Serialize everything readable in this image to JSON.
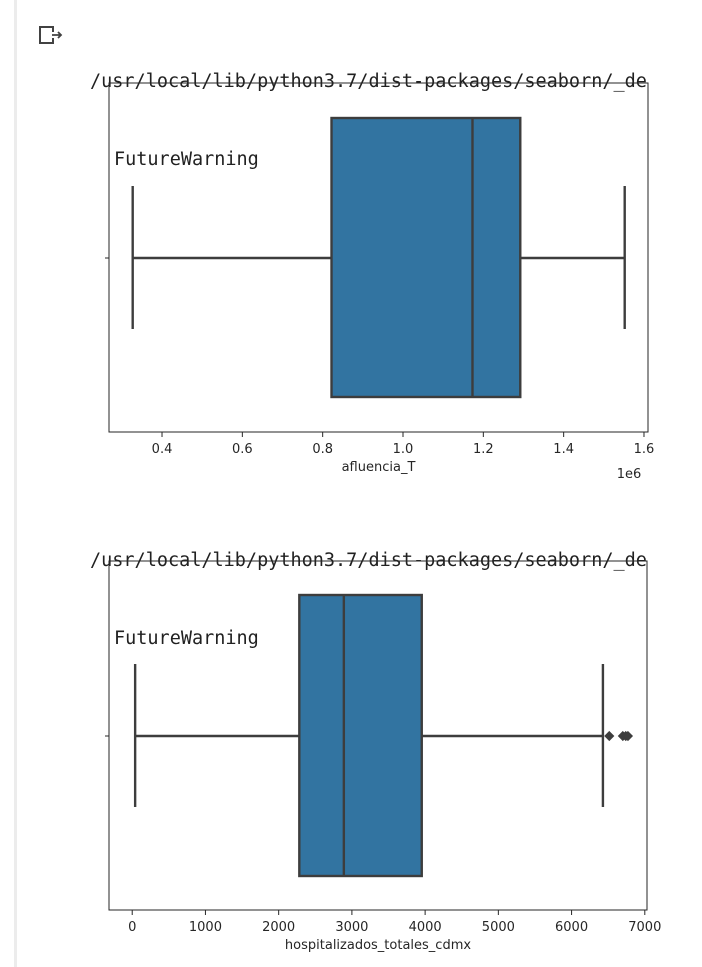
{
  "output": {
    "icon": "output-arrow-icon",
    "warnings": [
      {
        "path": "/usr/local/lib/python3.7/dist-packages/seaborn/_de",
        "message": "FutureWarning"
      },
      {
        "path": "/usr/local/lib/python3.7/dist-packages/seaborn/_de",
        "message": "FutureWarning"
      }
    ]
  },
  "colors": {
    "box_fill": "#3274a1",
    "line": "#3d3d3d",
    "frame": "#262626"
  },
  "chart_data": [
    {
      "type": "boxplot",
      "orientation": "horizontal",
      "xlabel": "afluencia_T",
      "offset_label": "1e6",
      "xlim": [
        268000,
        1610000
      ],
      "ticks": [
        0.4,
        0.6,
        0.8,
        1.0,
        1.2,
        1.4,
        1.6
      ],
      "tick_labels": [
        "0.4",
        "0.6",
        "0.8",
        "1.0",
        "1.2",
        "1.4",
        "1.6"
      ],
      "tick_scale": 1000000,
      "stats": {
        "whisker_low": 327000,
        "q1": 822000,
        "median": 1173000,
        "q3": 1292000,
        "whisker_high": 1552000
      },
      "outliers": []
    },
    {
      "type": "boxplot",
      "orientation": "horizontal",
      "xlabel": "hospitalizados_totales_cdmx",
      "offset_label": "",
      "xlim": [
        -317,
        7030
      ],
      "ticks": [
        0,
        1000,
        2000,
        3000,
        4000,
        5000,
        6000,
        7000
      ],
      "tick_labels": [
        "0",
        "1000",
        "2000",
        "3000",
        "4000",
        "5000",
        "6000",
        "7000"
      ],
      "tick_scale": 1,
      "stats": {
        "whisker_low": 40,
        "q1": 2282,
        "median": 2890,
        "q3": 3954,
        "whisker_high": 6428
      },
      "outliers": [
        6515,
        6700,
        6740,
        6770
      ]
    }
  ]
}
